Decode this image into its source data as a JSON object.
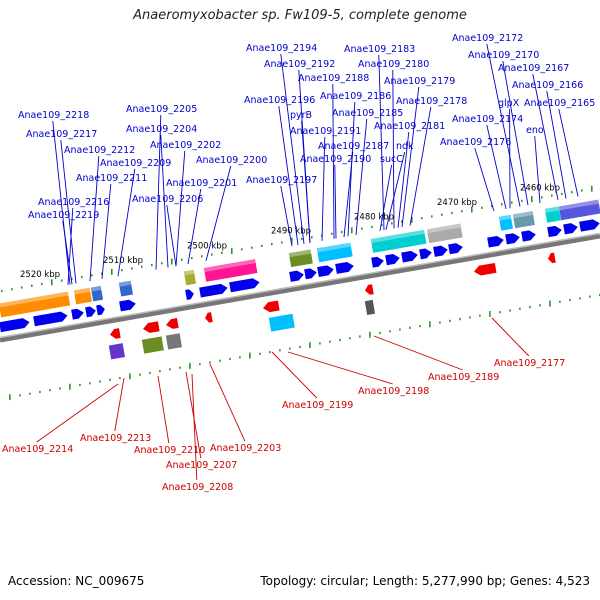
{
  "title": "Anaeromyxobacter sp. Fw109-5, complete genome",
  "footer": {
    "accession": "Accession: NC_009675",
    "stats": "Topology: circular; Length: 5,277,990 bp; Genes: 4,523"
  },
  "colors": {
    "forward_label": "#0000cc",
    "reverse_label": "#cc0000",
    "forward_gene": "#0000ee",
    "reverse_gene": "#ee0000",
    "backbone": "#777777",
    "tick": "#228b22"
  },
  "kbp_labels": [
    "2520 kbp",
    "2510 kbp",
    "2500 kbp",
    "2490 kbp",
    "2480 kbp",
    "2470 kbp",
    "2460 kbp"
  ],
  "forward_genes": [
    "Anae109_2218",
    "Anae109_2217",
    "Anae109_2212",
    "Anae109_2211",
    "Anae109_2216",
    "Anae109_2219",
    "Anae109_2209",
    "Anae109_2205",
    "Anae109_2204",
    "Anae109_2202",
    "Anae109_2200",
    "Anae109_2201",
    "Anae109_2206",
    "Anae109_2194",
    "Anae109_2192",
    "Anae109_2188",
    "Anae109_2196",
    "Anae109_2197",
    "pyrB",
    "Anae109_2191",
    "Anae109_2190",
    "Anae109_2186",
    "Anae109_2185",
    "Anae109_2187",
    "Anae109_2183",
    "Anae109_2180",
    "Anae109_2179",
    "Anae109_2178",
    "Anae109_2181",
    "ndk",
    "sucC",
    "Anae109_2172",
    "Anae109_2170",
    "Anae109_2167",
    "Anae109_2166",
    "Anae109_2165",
    "glpX",
    "Anae109_2174",
    "eno",
    "Anae109_2176"
  ],
  "reverse_genes": [
    "Anae109_2214",
    "Anae109_2213",
    "Anae109_2210",
    "Anae109_2207",
    "Anae109_2208",
    "Anae109_2203",
    "Anae109_2199",
    "Anae109_2198",
    "Anae109_2189",
    "Anae109_2177"
  ]
}
